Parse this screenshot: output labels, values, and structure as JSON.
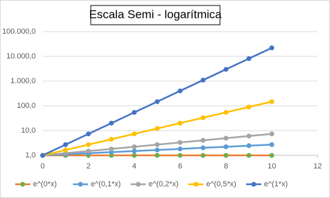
{
  "chart_data": {
    "type": "line",
    "title": "Escala Semi - logarítmica",
    "x": [
      0,
      1,
      2,
      3,
      4,
      5,
      6,
      7,
      8,
      9,
      10
    ],
    "series": [
      {
        "name": "e^(0*x)",
        "color": "#ed7d31",
        "marker_color": "#70ad47",
        "values": [
          1,
          1,
          1,
          1,
          1,
          1,
          1,
          1,
          1,
          1,
          1
        ]
      },
      {
        "name": "e^(0,1*x)",
        "color": "#5b9bd5",
        "values": [
          1,
          1.105,
          1.221,
          1.35,
          1.492,
          1.649,
          1.822,
          2.014,
          2.226,
          2.46,
          2.718
        ]
      },
      {
        "name": "e^(0,2*x)",
        "color": "#a5a5a5",
        "values": [
          1,
          1.221,
          1.492,
          1.822,
          2.226,
          2.718,
          3.32,
          4.055,
          4.953,
          6.05,
          7.389
        ]
      },
      {
        "name": "e^(0,5*x)",
        "color": "#ffc000",
        "values": [
          1,
          1.649,
          2.718,
          4.482,
          7.389,
          12.18,
          20.09,
          33.12,
          54.6,
          90.02,
          148.4
        ]
      },
      {
        "name": "e^(1*x)",
        "color": "#4472c4",
        "values": [
          1,
          2.718,
          7.389,
          20.09,
          54.6,
          148.4,
          403.4,
          1096.6,
          2981,
          8103,
          22026
        ]
      }
    ],
    "xlim": [
      0,
      12
    ],
    "xticks": [
      0,
      2,
      4,
      6,
      8,
      10,
      12
    ],
    "ylim": [
      1,
      100000
    ],
    "log_y": true,
    "yticks": [
      {
        "value": 1,
        "label": "1,0"
      },
      {
        "value": 10,
        "label": "10,0"
      },
      {
        "value": 100,
        "label": "100,0"
      },
      {
        "value": 1000,
        "label": "1.000,0"
      },
      {
        "value": 10000,
        "label": "10.000,0"
      },
      {
        "value": 100000,
        "label": "100.000,0"
      }
    ],
    "grid": true,
    "legend_position": "bottom"
  }
}
